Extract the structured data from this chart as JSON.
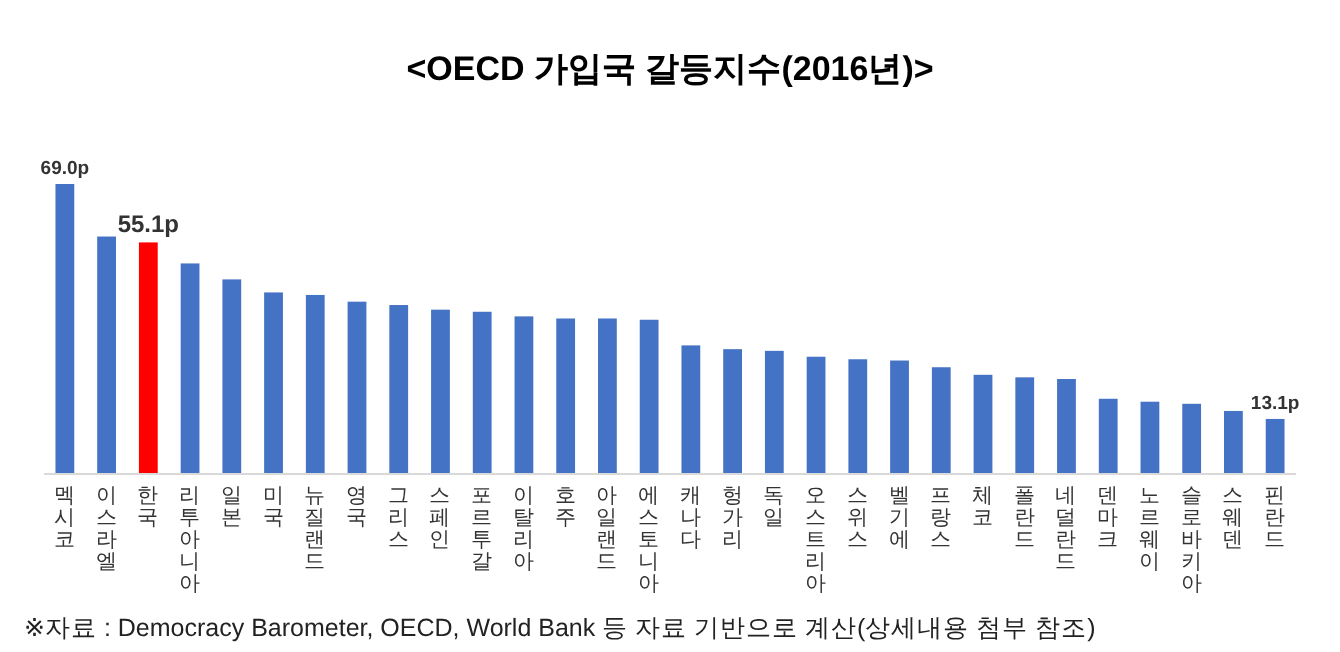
{
  "chart_data": {
    "type": "bar",
    "title": "<OECD 가입국 갈등지수(2016년)>",
    "categories": [
      "멕시코",
      "이스라엘",
      "한국",
      "리투아니아",
      "일본",
      "미국",
      "뉴질랜드",
      "영국",
      "그리스",
      "스페인",
      "포르투갈",
      "이탈리아",
      "호주",
      "아일랜드",
      "에스토니아",
      "캐나다",
      "헝가리",
      "독일",
      "오스트리아",
      "스위스",
      "벨기에",
      "프랑스",
      "체코",
      "폴란드",
      "네덜란드",
      "덴마크",
      "노르웨이",
      "슬로바키아",
      "스웨덴",
      "핀란드"
    ],
    "values": [
      69.0,
      56.5,
      55.1,
      50.1,
      46.3,
      43.2,
      42.6,
      41.0,
      40.2,
      39.1,
      38.6,
      37.5,
      37.0,
      37.0,
      36.7,
      30.6,
      29.7,
      29.3,
      27.9,
      27.3,
      27.0,
      25.4,
      23.6,
      23.0,
      22.6,
      17.9,
      17.2,
      16.7,
      15.0,
      13.1
    ],
    "colors": [
      "#4472c4",
      "#4472c4",
      "#ff0000",
      "#4472c4",
      "#4472c4",
      "#4472c4",
      "#4472c4",
      "#4472c4",
      "#4472c4",
      "#4472c4",
      "#4472c4",
      "#4472c4",
      "#4472c4",
      "#4472c4",
      "#4472c4",
      "#4472c4",
      "#4472c4",
      "#4472c4",
      "#4472c4",
      "#4472c4",
      "#4472c4",
      "#4472c4",
      "#4472c4",
      "#4472c4",
      "#4472c4",
      "#4472c4",
      "#4472c4",
      "#4472c4",
      "#4472c4",
      "#4472c4"
    ],
    "value_labels": [
      "69.0p",
      null,
      "55.1p",
      null,
      null,
      null,
      null,
      null,
      null,
      null,
      null,
      null,
      null,
      null,
      null,
      null,
      null,
      null,
      null,
      null,
      null,
      null,
      null,
      null,
      null,
      null,
      null,
      null,
      null,
      "13.1p"
    ],
    "annotations": [
      "※자료 : Democracy Barometer, OECD, World Bank 등 자료 기반으로 계산(상세내용 첨부 참조)"
    ]
  }
}
